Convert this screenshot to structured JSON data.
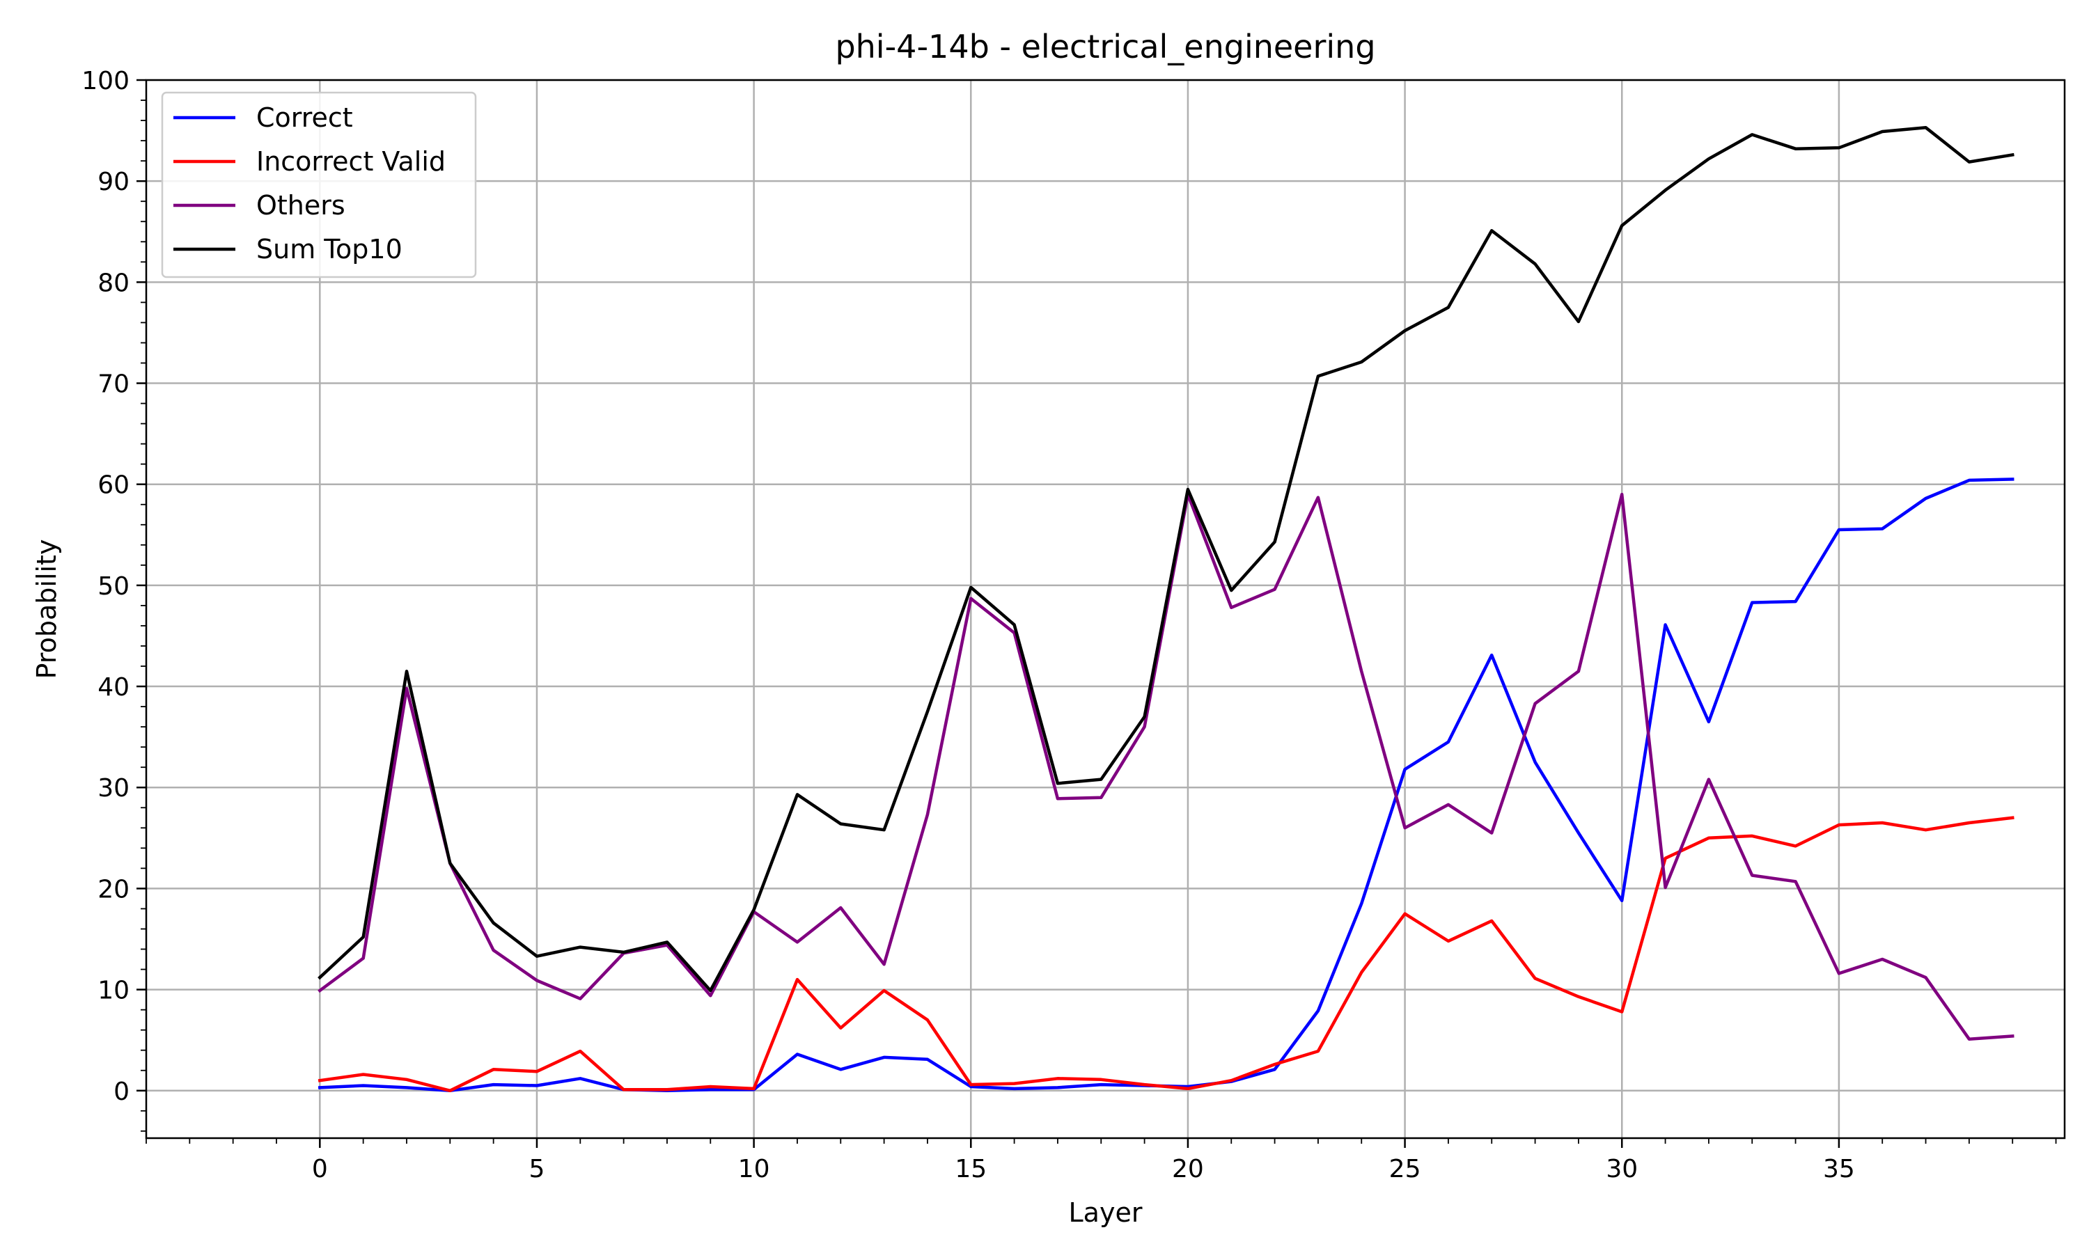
{
  "chart_data": {
    "type": "line",
    "title": "phi-4-14b - electrical_engineering",
    "xlabel": "Layer",
    "ylabel": "Probability",
    "xlim": [
      -4,
      40.2
    ],
    "ylim": [
      -4.7,
      100
    ],
    "xticks": [
      0,
      5,
      10,
      15,
      20,
      25,
      30,
      35
    ],
    "yticks": [
      0,
      10,
      20,
      30,
      40,
      50,
      60,
      70,
      80,
      90,
      100
    ],
    "grid": true,
    "legend_position": "top-left",
    "x": [
      0,
      1,
      2,
      3,
      4,
      5,
      6,
      7,
      8,
      9,
      10,
      11,
      12,
      13,
      14,
      15,
      16,
      17,
      18,
      19,
      20,
      21,
      22,
      23,
      24,
      25,
      26,
      27,
      28,
      29,
      30,
      31,
      32,
      33,
      34,
      35,
      36,
      37,
      38,
      39
    ],
    "series": [
      {
        "name": "Correct",
        "color": "#0000ff",
        "values": [
          0.3,
          0.5,
          0.3,
          0.0,
          0.6,
          0.5,
          1.2,
          0.1,
          0.0,
          0.1,
          0.1,
          3.6,
          2.1,
          3.3,
          3.1,
          0.4,
          0.2,
          0.3,
          0.6,
          0.5,
          0.4,
          0.9,
          2.1,
          7.9,
          18.5,
          31.8,
          34.5,
          43.1,
          32.5,
          25.5,
          18.8,
          46.1,
          36.5,
          48.3,
          48.4,
          55.5,
          55.6,
          58.6,
          60.4,
          60.5
        ]
      },
      {
        "name": "Incorrect Valid",
        "color": "#ff0000",
        "values": [
          1.0,
          1.6,
          1.1,
          0.0,
          2.1,
          1.9,
          3.9,
          0.1,
          0.1,
          0.4,
          0.2,
          11.0,
          6.2,
          9.9,
          7.0,
          0.6,
          0.7,
          1.2,
          1.1,
          0.6,
          0.2,
          1.0,
          2.6,
          3.9,
          11.7,
          17.5,
          14.8,
          16.8,
          11.1,
          9.3,
          7.8,
          23.0,
          25.0,
          25.2,
          24.2,
          26.3,
          26.5,
          25.8,
          26.5,
          27.0
        ]
      },
      {
        "name": "Others",
        "color": "#800080",
        "values": [
          9.9,
          13.1,
          39.8,
          22.5,
          13.9,
          10.9,
          9.1,
          13.6,
          14.4,
          9.4,
          17.7,
          14.7,
          18.1,
          12.5,
          27.3,
          48.7,
          45.3,
          28.9,
          29.0,
          36.0,
          59.0,
          47.8,
          49.6,
          58.7,
          41.5,
          26.0,
          28.3,
          25.5,
          38.3,
          41.5,
          59.0,
          20.1,
          30.8,
          21.3,
          20.7,
          11.6,
          13.0,
          11.2,
          5.1,
          5.4
        ]
      },
      {
        "name": "Sum Top10",
        "color": "#000000",
        "values": [
          11.2,
          15.2,
          41.5,
          22.5,
          16.6,
          13.3,
          14.2,
          13.7,
          14.7,
          9.9,
          17.9,
          29.3,
          26.4,
          25.8,
          37.5,
          49.8,
          46.1,
          30.4,
          30.8,
          37.0,
          59.5,
          49.5,
          54.3,
          70.7,
          72.1,
          75.2,
          77.5,
          85.1,
          81.8,
          76.1,
          85.6,
          89.1,
          92.2,
          94.6,
          93.2,
          93.3,
          94.9,
          95.3,
          91.9,
          92.6
        ]
      }
    ]
  }
}
